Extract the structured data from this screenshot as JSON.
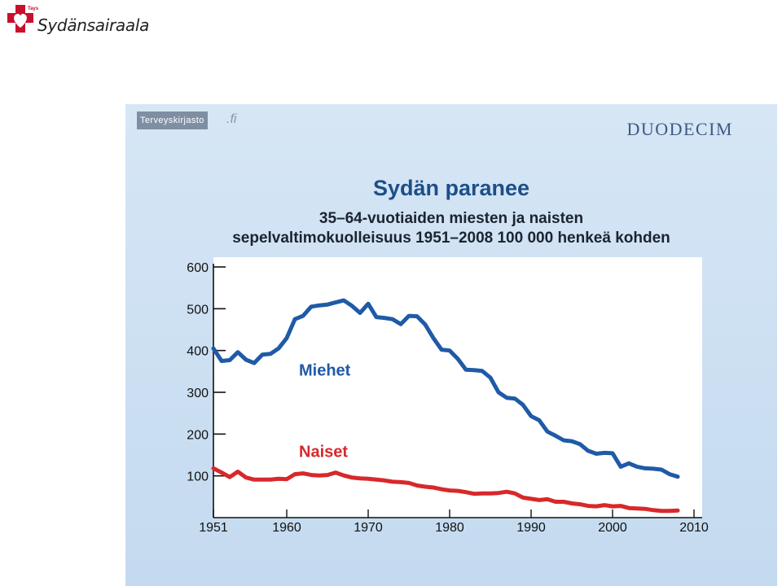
{
  "brand": {
    "logo_small": "Tays",
    "logo_text": "Sydänsairaala"
  },
  "slide": {
    "source_badge": "Terveyskirjasto",
    "source_suffix": ".fi",
    "publisher": "DUODECIM",
    "title": "Sydän paranee",
    "subtitle_line1": "35–64-vuotiaiden miesten ja naisten",
    "subtitle_line2": "sepelvaltimokuolleisuus 1951–2008 100 000 henkeä kohden"
  },
  "colors": {
    "miehet": "#1f5aa6",
    "naiset": "#d8282b",
    "panel": "#c9ddf1",
    "plot_bg": "#ffffff"
  },
  "chart_data": {
    "type": "line",
    "title": "Sydän paranee",
    "subtitle": "35–64-vuotiaiden miesten ja naisten sepelvaltimokuolleisuus 1951–2008 100 000 henkeä kohden",
    "xlabel": "",
    "ylabel": "",
    "xlim": [
      1951,
      2010
    ],
    "ylim": [
      0,
      600
    ],
    "x_ticks": [
      "1951",
      "1960",
      "1970",
      "1980",
      "1990",
      "2000",
      "2010"
    ],
    "x_tick_values": [
      1951,
      1960,
      1970,
      1980,
      1990,
      2000,
      2010
    ],
    "y_ticks": [
      "100",
      "200",
      "300",
      "400",
      "500",
      "600"
    ],
    "y_tick_values": [
      100,
      200,
      300,
      400,
      500,
      600
    ],
    "grid": false,
    "series": [
      {
        "name": "Miehet",
        "color": "#1f5aa6",
        "x": [
          1951,
          1952,
          1953,
          1954,
          1955,
          1956,
          1957,
          1958,
          1959,
          1960,
          1961,
          1962,
          1963,
          1964,
          1965,
          1966,
          1967,
          1968,
          1969,
          1970,
          1971,
          1972,
          1973,
          1974,
          1975,
          1976,
          1977,
          1978,
          1979,
          1980,
          1981,
          1982,
          1983,
          1984,
          1985,
          1986,
          1987,
          1988,
          1989,
          1990,
          1991,
          1992,
          1993,
          1994,
          1995,
          1996,
          1997,
          1998,
          1999,
          2000,
          2001,
          2002,
          2003,
          2004,
          2005,
          2006,
          2007,
          2008
        ],
        "values": [
          405,
          375,
          377,
          396,
          378,
          370,
          390,
          392,
          405,
          430,
          475,
          483,
          505,
          508,
          510,
          515,
          520,
          507,
          490,
          512,
          480,
          478,
          475,
          463,
          483,
          482,
          462,
          430,
          402,
          400,
          380,
          354,
          353,
          351,
          335,
          300,
          287,
          285,
          270,
          243,
          233,
          206,
          196,
          185,
          183,
          176,
          160,
          153,
          155,
          154,
          122,
          130,
          122,
          118,
          117,
          115,
          104,
          98
        ]
      },
      {
        "name": "Naiset",
        "color": "#d8282b",
        "x": [
          1951,
          1952,
          1953,
          1954,
          1955,
          1956,
          1957,
          1958,
          1959,
          1960,
          1961,
          1962,
          1963,
          1964,
          1965,
          1966,
          1967,
          1968,
          1969,
          1970,
          1971,
          1972,
          1973,
          1974,
          1975,
          1976,
          1977,
          1978,
          1979,
          1980,
          1981,
          1982,
          1983,
          1984,
          1985,
          1986,
          1987,
          1988,
          1989,
          1990,
          1991,
          1992,
          1993,
          1994,
          1995,
          1996,
          1997,
          1998,
          1999,
          2000,
          2001,
          2002,
          2003,
          2004,
          2005,
          2006,
          2007,
          2008
        ],
        "values": [
          118,
          108,
          97,
          110,
          96,
          91,
          91,
          91,
          93,
          92,
          104,
          106,
          102,
          101,
          102,
          108,
          101,
          96,
          94,
          93,
          91,
          89,
          86,
          85,
          83,
          77,
          74,
          72,
          68,
          65,
          64,
          61,
          57,
          58,
          58,
          59,
          62,
          58,
          48,
          45,
          42,
          44,
          38,
          38,
          34,
          32,
          28,
          27,
          30,
          27,
          28,
          23,
          22,
          21,
          18,
          16,
          16,
          17
        ]
      }
    ],
    "annotations": [
      {
        "text": "Miehet",
        "series": "Miehet",
        "x": 1961.5,
        "y": 340
      },
      {
        "text": "Naiset",
        "series": "Naiset",
        "x": 1961.5,
        "y": 145
      }
    ]
  }
}
